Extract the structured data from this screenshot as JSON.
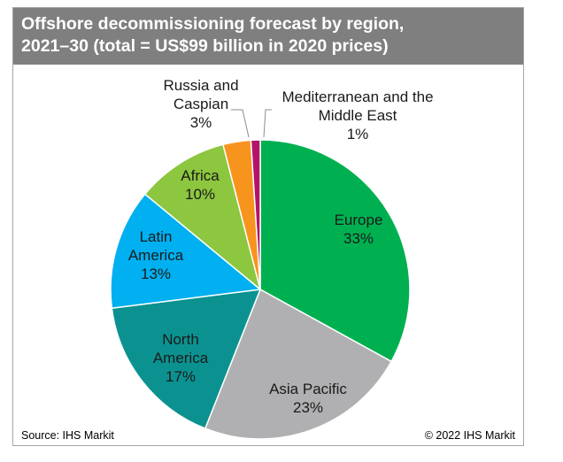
{
  "title": {
    "line1": "Offshore decommissioning forecast by region,",
    "line2": "2021–30 (total = US$99 billion in 2020 prices)"
  },
  "chart_data": {
    "type": "pie",
    "title": "Offshore decommissioning forecast by region, 2021–30 (total = US$99 billion in 2020 prices)",
    "unit": "%",
    "slices": [
      {
        "label": "Europe",
        "value": 33,
        "text": "33%",
        "color": "#00b050"
      },
      {
        "label": "Asia Pacific",
        "value": 23,
        "text": "23%",
        "color": "#b0b0b2"
      },
      {
        "label": "North America",
        "value": 17,
        "text": "17%",
        "color": "#0b9290"
      },
      {
        "label": "Latin America",
        "value": 13,
        "text": "13%",
        "color": "#00b0f0"
      },
      {
        "label": "Africa",
        "value": 10,
        "text": "10%",
        "color": "#8dc63f"
      },
      {
        "label": "Russia and Caspian",
        "value": 3,
        "text": "3%",
        "color": "#f7941d"
      },
      {
        "label": "Mediterranean and the Middle East",
        "value": 1,
        "text": "1%",
        "color": "#b5126a"
      }
    ]
  },
  "footer": {
    "source": "Source: IHS Markit",
    "copyright": "© 2022 IHS Markit"
  }
}
